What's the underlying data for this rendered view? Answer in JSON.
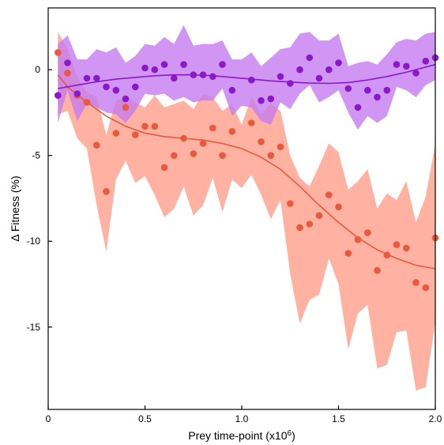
{
  "chart_data": {
    "type": "scatter",
    "title": "",
    "xlabel": "Prey time-point (x10",
    "xlabel_sup": "6",
    "xlabel_end": ")",
    "ylabel": "Δ Fitness (%)",
    "xlim": [
      0,
      2.0
    ],
    "ylim": [
      -19.8,
      3.6
    ],
    "x_ticks": [
      0,
      0.5,
      1.0,
      1.5,
      2.0
    ],
    "x_tick_labels": [
      "0",
      "0.5",
      "1.0",
      "1.5",
      "2.0"
    ],
    "y_ticks": [
      0,
      -5,
      -10,
      -15
    ],
    "y_tick_labels": [
      "0",
      "-5",
      "-10",
      "-15"
    ],
    "grid": false,
    "legend": "none",
    "series": [
      {
        "color": "#e8593d",
        "band_color": "#ffa898",
        "points": [
          [
            0.05,
            1.0
          ],
          [
            0.1,
            -0.2
          ],
          [
            0.15,
            -1.5
          ],
          [
            0.2,
            -1.9
          ],
          [
            0.25,
            -4.4
          ],
          [
            0.3,
            -7.1
          ],
          [
            0.35,
            -3.7
          ],
          [
            0.4,
            -2.2
          ],
          [
            0.45,
            -3.8
          ],
          [
            0.5,
            -3.3
          ],
          [
            0.55,
            -3.3
          ],
          [
            0.6,
            -5.7
          ],
          [
            0.65,
            -5.0
          ],
          [
            0.7,
            -4.0
          ],
          [
            0.75,
            -4.9
          ],
          [
            0.8,
            -4.3
          ],
          [
            0.85,
            -3.4
          ],
          [
            0.9,
            -5.0
          ],
          [
            0.95,
            -3.6
          ],
          [
            1.05,
            -3.1
          ],
          [
            1.1,
            -4.2
          ],
          [
            1.15,
            -5.0
          ],
          [
            1.2,
            -4.5
          ],
          [
            1.25,
            -7.8
          ],
          [
            1.3,
            -9.2
          ],
          [
            1.35,
            -9.0
          ],
          [
            1.4,
            -8.5
          ],
          [
            1.45,
            -7.3
          ],
          [
            1.5,
            -8.0
          ],
          [
            1.55,
            -10.7
          ],
          [
            1.6,
            -9.9
          ],
          [
            1.65,
            -9.5
          ],
          [
            1.7,
            -11.7
          ],
          [
            1.75,
            -10.8
          ],
          [
            1.8,
            -10.2
          ],
          [
            1.85,
            -10.4
          ],
          [
            1.9,
            -12.4
          ],
          [
            1.95,
            -12.7
          ],
          [
            2.0,
            -9.8
          ]
        ],
        "band_upper": [
          [
            0.05,
            2.2
          ],
          [
            0.1,
            1.2
          ],
          [
            0.15,
            -0.4
          ],
          [
            0.2,
            -1.3
          ],
          [
            0.25,
            -1.6
          ],
          [
            0.3,
            -3.8
          ],
          [
            0.35,
            -1.8
          ],
          [
            0.4,
            -1.6
          ],
          [
            0.45,
            -1.9
          ],
          [
            0.5,
            -2.2
          ],
          [
            0.55,
            -1.5
          ],
          [
            0.6,
            -2.2
          ],
          [
            0.65,
            -2.0
          ],
          [
            0.7,
            -1.8
          ],
          [
            0.75,
            -2.3
          ],
          [
            0.8,
            -1.4
          ],
          [
            0.85,
            -1.6
          ],
          [
            0.9,
            -2.4
          ],
          [
            0.95,
            -2.0
          ],
          [
            1.0,
            -3.2
          ],
          [
            1.05,
            -1.6
          ],
          [
            1.1,
            -2.6
          ],
          [
            1.15,
            -2.0
          ],
          [
            1.2,
            -2.4
          ],
          [
            1.25,
            -5.0
          ],
          [
            1.3,
            -6.3
          ],
          [
            1.35,
            -6.8
          ],
          [
            1.4,
            -5.6
          ],
          [
            1.45,
            -4.3
          ],
          [
            1.5,
            -4.8
          ],
          [
            1.55,
            -7.0
          ],
          [
            1.6,
            -6.5
          ],
          [
            1.65,
            -5.8
          ],
          [
            1.7,
            -8.1
          ],
          [
            1.75,
            -7.2
          ],
          [
            1.8,
            -7.6
          ],
          [
            1.85,
            -6.5
          ],
          [
            1.9,
            -8.9
          ],
          [
            1.95,
            -7.4
          ],
          [
            2.0,
            -4.3
          ]
        ],
        "band_lower": [
          [
            0.05,
            -2.6
          ],
          [
            0.1,
            -2.4
          ],
          [
            0.15,
            -4.0
          ],
          [
            0.2,
            -4.6
          ],
          [
            0.25,
            -7.9
          ],
          [
            0.3,
            -10.6
          ],
          [
            0.35,
            -6.4
          ],
          [
            0.4,
            -5.3
          ],
          [
            0.45,
            -6.6
          ],
          [
            0.5,
            -6.2
          ],
          [
            0.55,
            -7.3
          ],
          [
            0.6,
            -8.6
          ],
          [
            0.65,
            -8.1
          ],
          [
            0.7,
            -6.8
          ],
          [
            0.75,
            -8.5
          ],
          [
            0.8,
            -7.9
          ],
          [
            0.85,
            -6.3
          ],
          [
            0.9,
            -8.3
          ],
          [
            0.95,
            -6.4
          ],
          [
            1.0,
            -6.9
          ],
          [
            1.05,
            -6.1
          ],
          [
            1.1,
            -7.3
          ],
          [
            1.15,
            -8.7
          ],
          [
            1.2,
            -7.6
          ],
          [
            1.25,
            -11.9
          ],
          [
            1.3,
            -14.8
          ],
          [
            1.35,
            -13.4
          ],
          [
            1.4,
            -13.1
          ],
          [
            1.45,
            -11.0
          ],
          [
            1.5,
            -12.5
          ],
          [
            1.55,
            -16.3
          ],
          [
            1.6,
            -14.2
          ],
          [
            1.65,
            -13.7
          ],
          [
            1.7,
            -17.4
          ],
          [
            1.75,
            -17.2
          ],
          [
            1.8,
            -15.3
          ],
          [
            1.85,
            -15.2
          ],
          [
            1.9,
            -18.7
          ],
          [
            1.95,
            -18.5
          ],
          [
            2.0,
            -14.7
          ]
        ],
        "trend": [
          [
            0.05,
            -0.3
          ],
          [
            0.1,
            -1.0
          ],
          [
            0.2,
            -1.9
          ],
          [
            0.3,
            -2.7
          ],
          [
            0.4,
            -3.3
          ],
          [
            0.5,
            -3.7
          ],
          [
            0.6,
            -3.9
          ],
          [
            0.7,
            -4.0
          ],
          [
            0.8,
            -4.1
          ],
          [
            0.9,
            -4.3
          ],
          [
            1.0,
            -4.6
          ],
          [
            1.1,
            -5.1
          ],
          [
            1.2,
            -5.8
          ],
          [
            1.3,
            -6.8
          ],
          [
            1.4,
            -7.9
          ],
          [
            1.5,
            -8.9
          ],
          [
            1.6,
            -9.8
          ],
          [
            1.7,
            -10.5
          ],
          [
            1.8,
            -11.0
          ],
          [
            1.9,
            -11.4
          ],
          [
            2.0,
            -11.6
          ]
        ]
      },
      {
        "color": "#8a19c9",
        "band_color": "#c57cf0",
        "points": [
          [
            0.05,
            -1.5
          ],
          [
            0.1,
            0.4
          ],
          [
            0.15,
            -1.4
          ],
          [
            0.2,
            -0.5
          ],
          [
            0.25,
            -0.5
          ],
          [
            0.3,
            -1.0
          ],
          [
            0.35,
            -1.2
          ],
          [
            0.4,
            -1.7
          ],
          [
            0.45,
            -1.0
          ],
          [
            0.5,
            0.1
          ],
          [
            0.55,
            0.0
          ],
          [
            0.6,
            0.3
          ],
          [
            0.65,
            -0.5
          ],
          [
            0.7,
            0.3
          ],
          [
            0.75,
            -0.3
          ],
          [
            0.8,
            -0.3
          ],
          [
            0.85,
            -0.4
          ],
          [
            0.9,
            0.3
          ],
          [
            0.95,
            -1.2
          ],
          [
            1.05,
            -0.6
          ],
          [
            1.1,
            -1.8
          ],
          [
            1.15,
            -1.7
          ],
          [
            1.2,
            -0.4
          ],
          [
            1.25,
            -0.8
          ],
          [
            1.3,
            0.0
          ],
          [
            1.35,
            0.7
          ],
          [
            1.4,
            -0.5
          ],
          [
            1.45,
            0.0
          ],
          [
            1.5,
            0.4
          ],
          [
            1.55,
            -1.1
          ],
          [
            1.6,
            -2.2
          ],
          [
            1.65,
            -1.2
          ],
          [
            1.7,
            -1.6
          ],
          [
            1.75,
            -1.2
          ],
          [
            1.8,
            0.3
          ],
          [
            1.85,
            0.2
          ],
          [
            1.9,
            -0.2
          ],
          [
            1.95,
            0.5
          ],
          [
            2.0,
            0.7
          ]
        ],
        "band_upper": [
          [
            0.05,
            1.5
          ],
          [
            0.1,
            2.0
          ],
          [
            0.15,
            0.6
          ],
          [
            0.2,
            0.6
          ],
          [
            0.25,
            1.2
          ],
          [
            0.3,
            1.0
          ],
          [
            0.35,
            1.3
          ],
          [
            0.4,
            0.4
          ],
          [
            0.45,
            0.8
          ],
          [
            0.5,
            1.5
          ],
          [
            0.55,
            1.4
          ],
          [
            0.6,
            1.9
          ],
          [
            0.65,
            1.5
          ],
          [
            0.7,
            2.6
          ],
          [
            0.75,
            1.4
          ],
          [
            0.8,
            1.5
          ],
          [
            0.85,
            1.5
          ],
          [
            0.9,
            1.7
          ],
          [
            0.95,
            0.6
          ],
          [
            1.0,
            0.6
          ],
          [
            1.05,
            1.0
          ],
          [
            1.1,
            0.2
          ],
          [
            1.15,
            0.7
          ],
          [
            1.2,
            1.2
          ],
          [
            1.25,
            1.3
          ],
          [
            1.3,
            2.1
          ],
          [
            1.35,
            2.2
          ],
          [
            1.4,
            1.7
          ],
          [
            1.45,
            1.7
          ],
          [
            1.5,
            2.1
          ],
          [
            1.55,
            0.2
          ],
          [
            1.6,
            0.4
          ],
          [
            1.65,
            0.5
          ],
          [
            1.7,
            0.3
          ],
          [
            1.75,
            0.9
          ],
          [
            1.8,
            1.6
          ],
          [
            1.85,
            1.8
          ],
          [
            1.9,
            1.7
          ],
          [
            1.95,
            2.1
          ],
          [
            2.0,
            2.2
          ]
        ],
        "band_lower": [
          [
            0.05,
            -3.1
          ],
          [
            0.1,
            -1.2
          ],
          [
            0.15,
            -3.0
          ],
          [
            0.2,
            -2.0
          ],
          [
            0.25,
            -2.2
          ],
          [
            0.3,
            -2.5
          ],
          [
            0.35,
            -2.6
          ],
          [
            0.4,
            -3.1
          ],
          [
            0.45,
            -2.4
          ],
          [
            0.5,
            -1.4
          ],
          [
            0.55,
            -1.5
          ],
          [
            0.6,
            -1.4
          ],
          [
            0.65,
            -1.8
          ],
          [
            0.7,
            -1.6
          ],
          [
            0.75,
            -1.9
          ],
          [
            0.8,
            -1.8
          ],
          [
            0.85,
            -1.8
          ],
          [
            0.9,
            -1.1
          ],
          [
            0.95,
            -2.7
          ],
          [
            1.0,
            -2.1
          ],
          [
            1.05,
            -2.2
          ],
          [
            1.1,
            -3.0
          ],
          [
            1.15,
            -3.2
          ],
          [
            1.2,
            -1.9
          ],
          [
            1.25,
            -2.3
          ],
          [
            1.3,
            -1.4
          ],
          [
            1.35,
            -0.9
          ],
          [
            1.4,
            -1.9
          ],
          [
            1.45,
            -1.6
          ],
          [
            1.5,
            -1.2
          ],
          [
            1.55,
            -2.5
          ],
          [
            1.6,
            -3.5
          ],
          [
            1.65,
            -2.7
          ],
          [
            1.7,
            -3.1
          ],
          [
            1.75,
            -2.7
          ],
          [
            1.8,
            -1.0
          ],
          [
            1.85,
            -1.2
          ],
          [
            1.9,
            -1.6
          ],
          [
            1.95,
            -0.9
          ],
          [
            2.0,
            -0.6
          ]
        ],
        "trend": [
          [
            0.05,
            -1.1
          ],
          [
            0.15,
            -0.9
          ],
          [
            0.25,
            -0.7
          ],
          [
            0.35,
            -0.55
          ],
          [
            0.45,
            -0.45
          ],
          [
            0.55,
            -0.35
          ],
          [
            0.65,
            -0.3
          ],
          [
            0.75,
            -0.3
          ],
          [
            0.85,
            -0.35
          ],
          [
            0.95,
            -0.45
          ],
          [
            1.05,
            -0.55
          ],
          [
            1.15,
            -0.65
          ],
          [
            1.25,
            -0.72
          ],
          [
            1.35,
            -0.78
          ],
          [
            1.45,
            -0.8
          ],
          [
            1.55,
            -0.75
          ],
          [
            1.65,
            -0.6
          ],
          [
            1.75,
            -0.4
          ],
          [
            1.85,
            -0.15
          ],
          [
            1.95,
            0.15
          ],
          [
            2.0,
            0.3
          ]
        ]
      }
    ]
  }
}
